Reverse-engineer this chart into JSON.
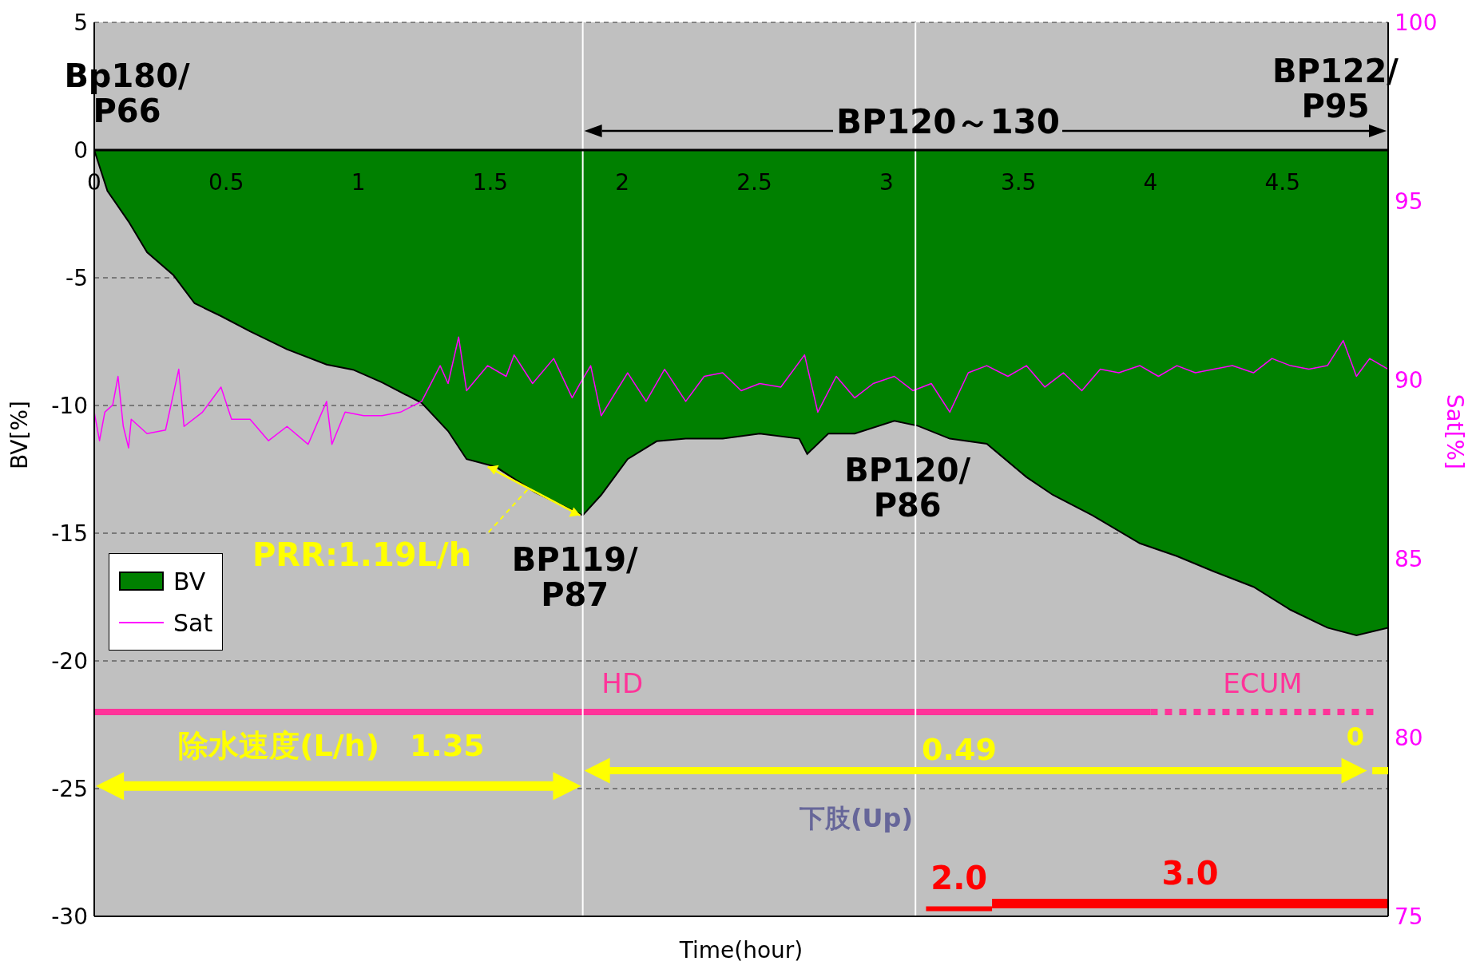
{
  "chart_data": {
    "type": "area",
    "xlabel": "Time(hour)",
    "ylabel": "BV[%]",
    "y2label": "Sat[%]",
    "xlim": [
      0,
      4.9
    ],
    "xticks": [
      0,
      0.5,
      1,
      1.5,
      2,
      2.5,
      3,
      3.5,
      4,
      4.5
    ],
    "ylim": [
      -30,
      5
    ],
    "yticks": [
      -30,
      -25,
      -20,
      -15,
      -10,
      -5,
      0,
      5
    ],
    "y2lim": [
      75,
      100
    ],
    "y2ticks": [
      75,
      80,
      85,
      90,
      95,
      100
    ],
    "grid": "y",
    "legend": "bottom left",
    "series": [
      {
        "name": "BV",
        "color": "#008000",
        "x": [
          0,
          0.05,
          0.13,
          0.2,
          0.3,
          0.38,
          0.48,
          0.59,
          0.73,
          0.88,
          0.98,
          1.09,
          1.24,
          1.34,
          1.41,
          1.52,
          1.67,
          1.85,
          1.92,
          2.02,
          2.13,
          2.24,
          2.38,
          2.52,
          2.67,
          2.7,
          2.78,
          2.88,
          3.03,
          3.12,
          3.24,
          3.38,
          3.53,
          3.63,
          3.78,
          3.96,
          4.1,
          4.24,
          4.39,
          4.53,
          4.67,
          4.78,
          4.9
        ],
        "values": [
          0,
          -1.6,
          -2.8,
          -4,
          -4.9,
          -6,
          -6.5,
          -7.1,
          -7.8,
          -8.4,
          -8.6,
          -9.1,
          -9.9,
          -11,
          -12.1,
          -12.4,
          -13.4,
          -14.3,
          -13.5,
          -12.1,
          -11.4,
          -11.3,
          -11.3,
          -11.1,
          -11.3,
          -11.9,
          -11.1,
          -11.1,
          -10.6,
          -10.8,
          -11.3,
          -11.5,
          -12.8,
          -13.5,
          -14.3,
          -15.4,
          -15.9,
          -16.5,
          -17.1,
          -18,
          -18.7,
          -19,
          -18.7
        ]
      },
      {
        "name": "Sat",
        "type": "line",
        "axis": "y2",
        "color": "#ff00ff",
        "line_style": "solid",
        "x": [
          0,
          0.02,
          0.04,
          0.07,
          0.09,
          0.11,
          0.13,
          0.14,
          0.2,
          0.27,
          0.32,
          0.34,
          0.41,
          0.48,
          0.52,
          0.59,
          0.66,
          0.73,
          0.81,
          0.88,
          0.9,
          0.95,
          1.02,
          1.09,
          1.16,
          1.24,
          1.31,
          1.34,
          1.38,
          1.41,
          1.49,
          1.56,
          1.59,
          1.66,
          1.74,
          1.81,
          1.84,
          1.88,
          1.92,
          2.02,
          2.09,
          2.16,
          2.24,
          2.31,
          2.38,
          2.45,
          2.52,
          2.6,
          2.69,
          2.74,
          2.81,
          2.88,
          2.95,
          3.03,
          3.1,
          3.17,
          3.24,
          3.31,
          3.38,
          3.46,
          3.53,
          3.6,
          3.67,
          3.74,
          3.81,
          3.88,
          3.96,
          4.03,
          4.1,
          4.17,
          4.24,
          4.31,
          4.39,
          4.46,
          4.53,
          4.6,
          4.67,
          4.73,
          4.78,
          4.83,
          4.9
        ],
        "values": [
          89.1,
          88.3,
          89.1,
          89.3,
          90.1,
          88.7,
          88.1,
          88.9,
          88.5,
          88.6,
          90.3,
          88.7,
          89.1,
          89.8,
          88.9,
          88.9,
          88.3,
          88.7,
          88.2,
          89.4,
          88.2,
          89.1,
          89,
          89,
          89.1,
          89.4,
          90.4,
          89.9,
          91.2,
          89.7,
          90.4,
          90.1,
          90.7,
          89.9,
          90.6,
          89.5,
          89.9,
          90.4,
          89,
          90.2,
          89.4,
          90.3,
          89.4,
          90.1,
          90.2,
          89.7,
          89.9,
          89.8,
          90.7,
          89.1,
          90.1,
          89.5,
          89.9,
          90.1,
          89.7,
          89.9,
          89.1,
          90.2,
          90.4,
          90.1,
          90.4,
          89.8,
          90.2,
          89.7,
          90.3,
          90.2,
          90.4,
          90.1,
          90.4,
          90.2,
          90.3,
          90.4,
          90.2,
          90.6,
          90.4,
          90.3,
          90.4,
          91.1,
          90.1,
          90.6,
          90.3
        ]
      },
      {
        "name": "HD",
        "type": "line",
        "color": "#ff3399",
        "line_style": "solid",
        "x": [
          0,
          4.0
        ],
        "values": [
          -22,
          -22
        ]
      },
      {
        "name": "ECUM",
        "type": "line",
        "color": "#ff3399",
        "line_style": "dotted",
        "x": [
          4.0,
          4.85
        ],
        "values": [
          -22,
          -22
        ]
      },
      {
        "name": "2.0",
        "type": "line",
        "color": "#ff0000",
        "line_style": "solid",
        "x": [
          3.15,
          3.4
        ],
        "values": [
          -29.7,
          -29.7
        ]
      },
      {
        "name": "3.0",
        "type": "line",
        "color": "#ff0000",
        "line_style": "solid",
        "x": [
          3.4,
          4.9
        ],
        "values": [
          -29.5,
          -29.5
        ]
      }
    ],
    "ref_lines": [
      {
        "axis": "x",
        "value": 1.85,
        "color": "#ffffff"
      },
      {
        "axis": "x",
        "value": 3.11,
        "color": "#ffffff"
      }
    ],
    "annotations": [
      "Bp180/\nP66",
      "BP122/\nP95",
      "BP120～130",
      "除水速度(L/h)　1.35",
      "0.49",
      "0",
      "下肢(Up)",
      {
        "text": "PRR:1.19L/h",
        "x": 1.67,
        "y": -13.4
      },
      {
        "text": "BP119/\nP87",
        "x": 1.85,
        "y": -14.3
      },
      {
        "text": "BP120/\nP86",
        "x": 3.11,
        "y": -10.8
      }
    ]
  }
}
